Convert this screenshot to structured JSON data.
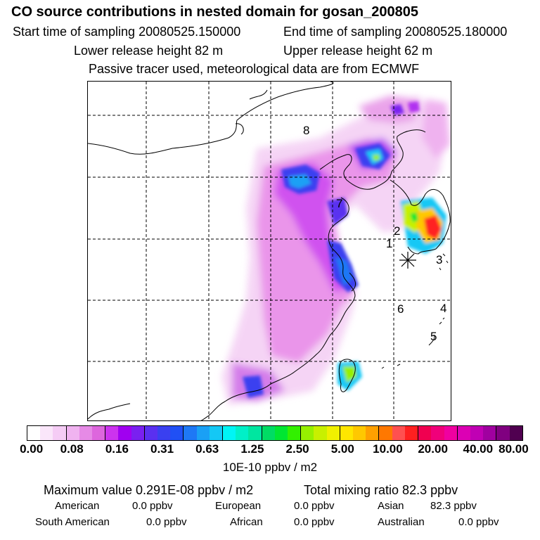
{
  "header": {
    "title": "CO  source contributions in nested domain for gosan_200805",
    "start_label": "Start time of sampling 20080525.150000",
    "end_label": "End time of sampling 20080525.180000",
    "lower_label": "Lower release height   82 m",
    "upper_label": "Upper release height   62 m",
    "note": "Passive tracer used, meteorological data are from ECMWF"
  },
  "map": {
    "region_labels": [
      "1",
      "2",
      "3",
      "4",
      "5",
      "6",
      "7",
      "8"
    ]
  },
  "colorbar": {
    "ticks": [
      "0.00",
      "0.08",
      "0.16",
      "0.31",
      "0.63",
      "1.25",
      "2.50",
      "5.00",
      "10.00",
      "20.00",
      "40.00",
      "80.00"
    ],
    "unit": "10E-10 ppbv / m2",
    "colors": [
      "#ffffff",
      "#fae6fa",
      "#f5ccf5",
      "#f0b3f0",
      "#e68ae6",
      "#dd66dd",
      "#cc33ee",
      "#a000f0",
      "#7a20f0",
      "#5a30f0",
      "#3a40f0",
      "#2050f5",
      "#1e78f5",
      "#1aa0f5",
      "#14c8f5",
      "#00f5f5",
      "#00f0c8",
      "#00e6a0",
      "#00dc64",
      "#00e632",
      "#32f000",
      "#96f000",
      "#c8f000",
      "#f0f000",
      "#ffe600",
      "#ffc800",
      "#ffa000",
      "#ff7800",
      "#ff5050",
      "#ff2020",
      "#f00050",
      "#f0007a",
      "#f000a0",
      "#dc00b4",
      "#c000b4",
      "#a000a0",
      "#800080",
      "#500050"
    ]
  },
  "summary": {
    "max_label": "Maximum value  0.291E-08 ppbv / m2",
    "total_label": "Total mixing ratio       82.3 ppbv",
    "american_label": "American",
    "american_val": "0.0 ppbv",
    "european_label": "European",
    "european_val": "0.0 ppbv",
    "asian_label": "Asian",
    "asian_val": "82.3 ppbv",
    "south_american_label": "South American",
    "south_american_val": "0.0 ppbv",
    "african_label": "African",
    "african_val": "0.0 ppbv",
    "australian_label": "Australian",
    "australian_val": "0.0 ppbv"
  }
}
